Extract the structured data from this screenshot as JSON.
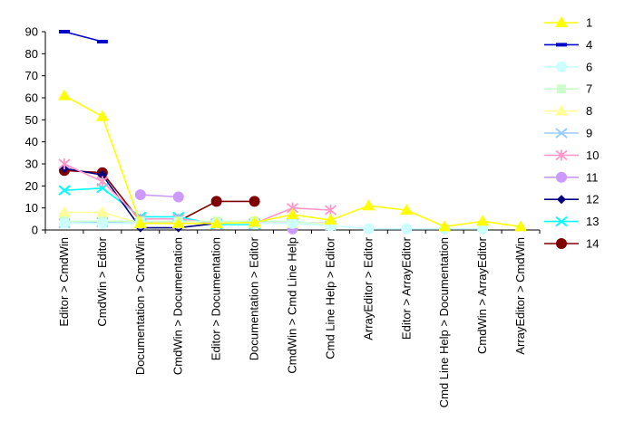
{
  "chart_data": {
    "type": "line",
    "categories": [
      "Editor > CmdWin",
      "CmdWin > Editor",
      "Documentation > CmdWin",
      "CmdWin > Documentation",
      "Editor > Documentation",
      "Documentation > Editor",
      "CmdWin > Cmd Line Help",
      "Cmd Line Help > Editor",
      "ArrayEditor > Editor",
      "Editor > ArrayEditor",
      "Cmd Line Help > Documentation",
      "CmdWin > ArrayEditor",
      "ArrayEditor > CmdWin"
    ],
    "ylim": [
      0,
      90
    ],
    "yticks": [
      "0",
      "10",
      "20",
      "30",
      "40",
      "50",
      "60",
      "70",
      "80",
      "90"
    ],
    "grid": false,
    "legend_position": "right",
    "series": [
      {
        "name": "1",
        "color": "#ffff00",
        "marker": "triangle",
        "values": [
          61,
          51.5,
          3,
          3,
          3,
          3.5,
          7,
          4.5,
          11,
          9,
          1.5,
          4,
          1.5
        ]
      },
      {
        "name": "4",
        "color": "#0000cc",
        "marker": "dash",
        "values": [
          90,
          85.5,
          null,
          null,
          null,
          null,
          null,
          null,
          null,
          null,
          null,
          null,
          null
        ]
      },
      {
        "name": "6",
        "color": "#ccffff",
        "marker": "circle",
        "values": [
          3,
          3,
          3,
          3,
          3,
          3,
          3,
          2,
          0.5,
          0.5,
          0.5,
          0.5,
          null
        ]
      },
      {
        "name": "7",
        "color": "#ccffcc",
        "marker": "square",
        "values": [
          4,
          4,
          4,
          4,
          4,
          4,
          4,
          2,
          null,
          null,
          null,
          null,
          null
        ]
      },
      {
        "name": "8",
        "color": "#ffff99",
        "marker": "triangle",
        "values": [
          8,
          8,
          3,
          3,
          3,
          3,
          3,
          3,
          null,
          null,
          null,
          null,
          null
        ]
      },
      {
        "name": "9",
        "color": "#99ccff",
        "marker": "x",
        "values": [
          3,
          3.5,
          3,
          3,
          3,
          3,
          3,
          2,
          null,
          null,
          null,
          null,
          null
        ]
      },
      {
        "name": "10",
        "color": "#ff99cc",
        "marker": "star",
        "values": [
          30,
          22,
          5,
          5,
          3,
          3,
          10,
          9,
          null,
          null,
          null,
          null,
          null
        ]
      },
      {
        "name": "11",
        "color": "#cc99ff",
        "marker": "circle",
        "values": [
          null,
          null,
          16,
          15,
          null,
          null,
          0.5,
          null,
          null,
          null,
          0.5,
          null,
          null
        ]
      },
      {
        "name": "12",
        "color": "#000080",
        "marker": "diamond",
        "values": [
          28,
          25,
          1,
          1,
          3,
          3,
          3,
          3,
          null,
          null,
          0.5,
          null,
          null
        ]
      },
      {
        "name": "13",
        "color": "#00ffff",
        "marker": "x",
        "values": [
          18,
          19,
          6,
          6,
          2.5,
          2.5,
          null,
          null,
          null,
          null,
          null,
          null,
          null
        ]
      },
      {
        "name": "14",
        "color": "#800000",
        "marker": "circle",
        "values": [
          27,
          26,
          4,
          4,
          13,
          13,
          null,
          null,
          null,
          null,
          null,
          null,
          null
        ]
      }
    ]
  }
}
